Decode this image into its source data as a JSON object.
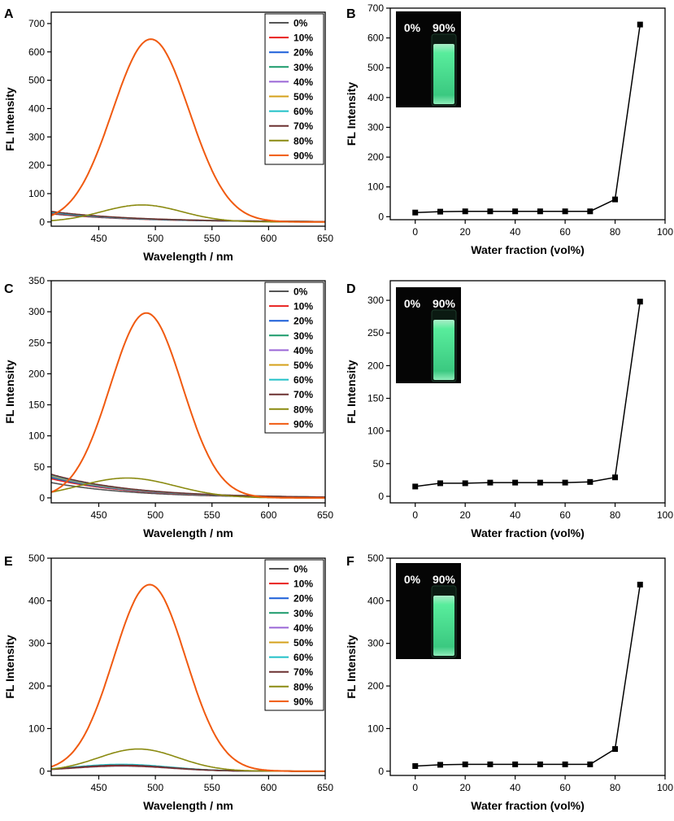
{
  "figure": {
    "water_fractions": [
      "0%",
      "10%",
      "20%",
      "30%",
      "40%",
      "50%",
      "60%",
      "70%",
      "80%",
      "90%"
    ],
    "series_colors": [
      "#555555",
      "#e8201e",
      "#1a5ed8",
      "#1a9a6a",
      "#9a66d6",
      "#d4a01a",
      "#20c0c8",
      "#6b3030",
      "#8a8a10",
      "#f05a10"
    ],
    "inset": {
      "label_left": "0%",
      "label_right": "90%",
      "glow_color": "#5fffa8"
    }
  },
  "chart_data": [
    {
      "panel": "A",
      "type": "line",
      "xlabel": "Wavelength / nm",
      "ylabel": "FL Intensity",
      "xlim": [
        408,
        650
      ],
      "ylim": [
        -15,
        740
      ],
      "xticks": [
        450,
        500,
        550,
        600,
        650
      ],
      "yticks": [
        0,
        100,
        200,
        300,
        400,
        500,
        600,
        700
      ],
      "legend": "top-right",
      "series": [
        {
          "name": "0%",
          "peak": 495,
          "width": 55,
          "amp": 0,
          "base": 28,
          "decay": 0.012
        },
        {
          "name": "10%",
          "peak": 495,
          "width": 55,
          "amp": 0,
          "base": 30,
          "decay": 0.012
        },
        {
          "name": "20%",
          "peak": 495,
          "width": 55,
          "amp": 0,
          "base": 32,
          "decay": 0.012
        },
        {
          "name": "30%",
          "peak": 495,
          "width": 55,
          "amp": 0,
          "base": 33,
          "decay": 0.012
        },
        {
          "name": "40%",
          "peak": 495,
          "width": 55,
          "amp": 0,
          "base": 34,
          "decay": 0.012
        },
        {
          "name": "50%",
          "peak": 495,
          "width": 55,
          "amp": 0,
          "base": 35,
          "decay": 0.012
        },
        {
          "name": "60%",
          "peak": 495,
          "width": 55,
          "amp": 0,
          "base": 34,
          "decay": 0.012
        },
        {
          "name": "70%",
          "peak": 495,
          "width": 55,
          "amp": 0,
          "base": 36,
          "decay": 0.012
        },
        {
          "name": "80%",
          "peak": 488,
          "width": 50,
          "amp": 60,
          "base": 0,
          "decay": 0
        },
        {
          "name": "90%",
          "peak": 496,
          "width": 48,
          "amp": 645,
          "base": 0,
          "decay": 0
        }
      ]
    },
    {
      "panel": "B",
      "type": "scatter",
      "xlabel": "Water fraction (vol%)",
      "ylabel": "FL Intensity",
      "xlim": [
        -10,
        100
      ],
      "ylim": [
        -10,
        700
      ],
      "xticks": [
        0,
        20,
        40,
        60,
        80,
        100
      ],
      "yticks": [
        0,
        100,
        200,
        300,
        400,
        500,
        600,
        700
      ],
      "x": [
        0,
        10,
        20,
        30,
        40,
        50,
        60,
        70,
        80,
        90
      ],
      "y": [
        14,
        17,
        18,
        18,
        18,
        18,
        18,
        18,
        58,
        645
      ]
    },
    {
      "panel": "C",
      "type": "line",
      "xlabel": "Wavelength / nm",
      "ylabel": "FL Intensity",
      "xlim": [
        408,
        650
      ],
      "ylim": [
        -8,
        350
      ],
      "xticks": [
        450,
        500,
        550,
        600,
        650
      ],
      "yticks": [
        0,
        50,
        100,
        150,
        200,
        250,
        300,
        350
      ],
      "legend": "top-right",
      "series": [
        {
          "name": "0%",
          "peak": 495,
          "width": 55,
          "amp": 0,
          "base": 24,
          "decay": 0.012
        },
        {
          "name": "10%",
          "peak": 495,
          "width": 55,
          "amp": 0,
          "base": 30,
          "decay": 0.012
        },
        {
          "name": "20%",
          "peak": 495,
          "width": 55,
          "amp": 0,
          "base": 32,
          "decay": 0.012
        },
        {
          "name": "30%",
          "peak": 495,
          "width": 55,
          "amp": 0,
          "base": 33,
          "decay": 0.012
        },
        {
          "name": "40%",
          "peak": 495,
          "width": 55,
          "amp": 0,
          "base": 34,
          "decay": 0.012
        },
        {
          "name": "50%",
          "peak": 495,
          "width": 55,
          "amp": 0,
          "base": 35,
          "decay": 0.012
        },
        {
          "name": "60%",
          "peak": 495,
          "width": 55,
          "amp": 0,
          "base": 36,
          "decay": 0.012
        },
        {
          "name": "70%",
          "peak": 495,
          "width": 55,
          "amp": 0,
          "base": 37,
          "decay": 0.012
        },
        {
          "name": "80%",
          "peak": 475,
          "width": 60,
          "amp": 32,
          "base": 0,
          "decay": 0
        },
        {
          "name": "90%",
          "peak": 492,
          "width": 45,
          "amp": 298,
          "base": 0,
          "decay": 0
        }
      ]
    },
    {
      "panel": "D",
      "type": "scatter",
      "xlabel": "Water fraction (vol%)",
      "ylabel": "FL Intensity",
      "xlim": [
        -10,
        100
      ],
      "ylim": [
        -10,
        330
      ],
      "xticks": [
        0,
        20,
        40,
        60,
        80,
        100
      ],
      "yticks": [
        0,
        50,
        100,
        150,
        200,
        250,
        300
      ],
      "x": [
        0,
        10,
        20,
        30,
        40,
        50,
        60,
        70,
        80,
        90
      ],
      "y": [
        15,
        20,
        20,
        21,
        21,
        21,
        21,
        22,
        29,
        298
      ]
    },
    {
      "panel": "E",
      "type": "line",
      "xlabel": "Wavelength / nm",
      "ylabel": "FL Intensity",
      "xlim": [
        408,
        650
      ],
      "ylim": [
        -10,
        500
      ],
      "xticks": [
        450,
        500,
        550,
        600,
        650
      ],
      "yticks": [
        0,
        100,
        200,
        300,
        400,
        500
      ],
      "legend": "top-right",
      "series": [
        {
          "name": "0%",
          "peak": 470,
          "width": 60,
          "amp": 12,
          "base": 0,
          "decay": 0
        },
        {
          "name": "10%",
          "peak": 470,
          "width": 60,
          "amp": 13,
          "base": 0,
          "decay": 0
        },
        {
          "name": "20%",
          "peak": 470,
          "width": 60,
          "amp": 14,
          "base": 0,
          "decay": 0
        },
        {
          "name": "30%",
          "peak": 470,
          "width": 60,
          "amp": 15,
          "base": 0,
          "decay": 0
        },
        {
          "name": "40%",
          "peak": 470,
          "width": 60,
          "amp": 15,
          "base": 0,
          "decay": 0
        },
        {
          "name": "50%",
          "peak": 470,
          "width": 60,
          "amp": 15,
          "base": 0,
          "decay": 0
        },
        {
          "name": "60%",
          "peak": 470,
          "width": 60,
          "amp": 16,
          "base": 0,
          "decay": 0
        },
        {
          "name": "70%",
          "peak": 470,
          "width": 60,
          "amp": 14,
          "base": 0,
          "decay": 0
        },
        {
          "name": "80%",
          "peak": 485,
          "width": 50,
          "amp": 52,
          "base": 0,
          "decay": 0
        },
        {
          "name": "90%",
          "peak": 495,
          "width": 45,
          "amp": 438,
          "base": 0,
          "decay": 0
        }
      ]
    },
    {
      "panel": "F",
      "type": "scatter",
      "xlabel": "Water fraction (vol%)",
      "ylabel": "FL Intensity",
      "xlim": [
        -10,
        100
      ],
      "ylim": [
        -10,
        500
      ],
      "xticks": [
        0,
        20,
        40,
        60,
        80,
        100
      ],
      "yticks": [
        0,
        100,
        200,
        300,
        400,
        500
      ],
      "x": [
        0,
        10,
        20,
        30,
        40,
        50,
        60,
        70,
        80,
        90
      ],
      "y": [
        12,
        15,
        16,
        16,
        16,
        16,
        16,
        16,
        52,
        438
      ]
    }
  ]
}
